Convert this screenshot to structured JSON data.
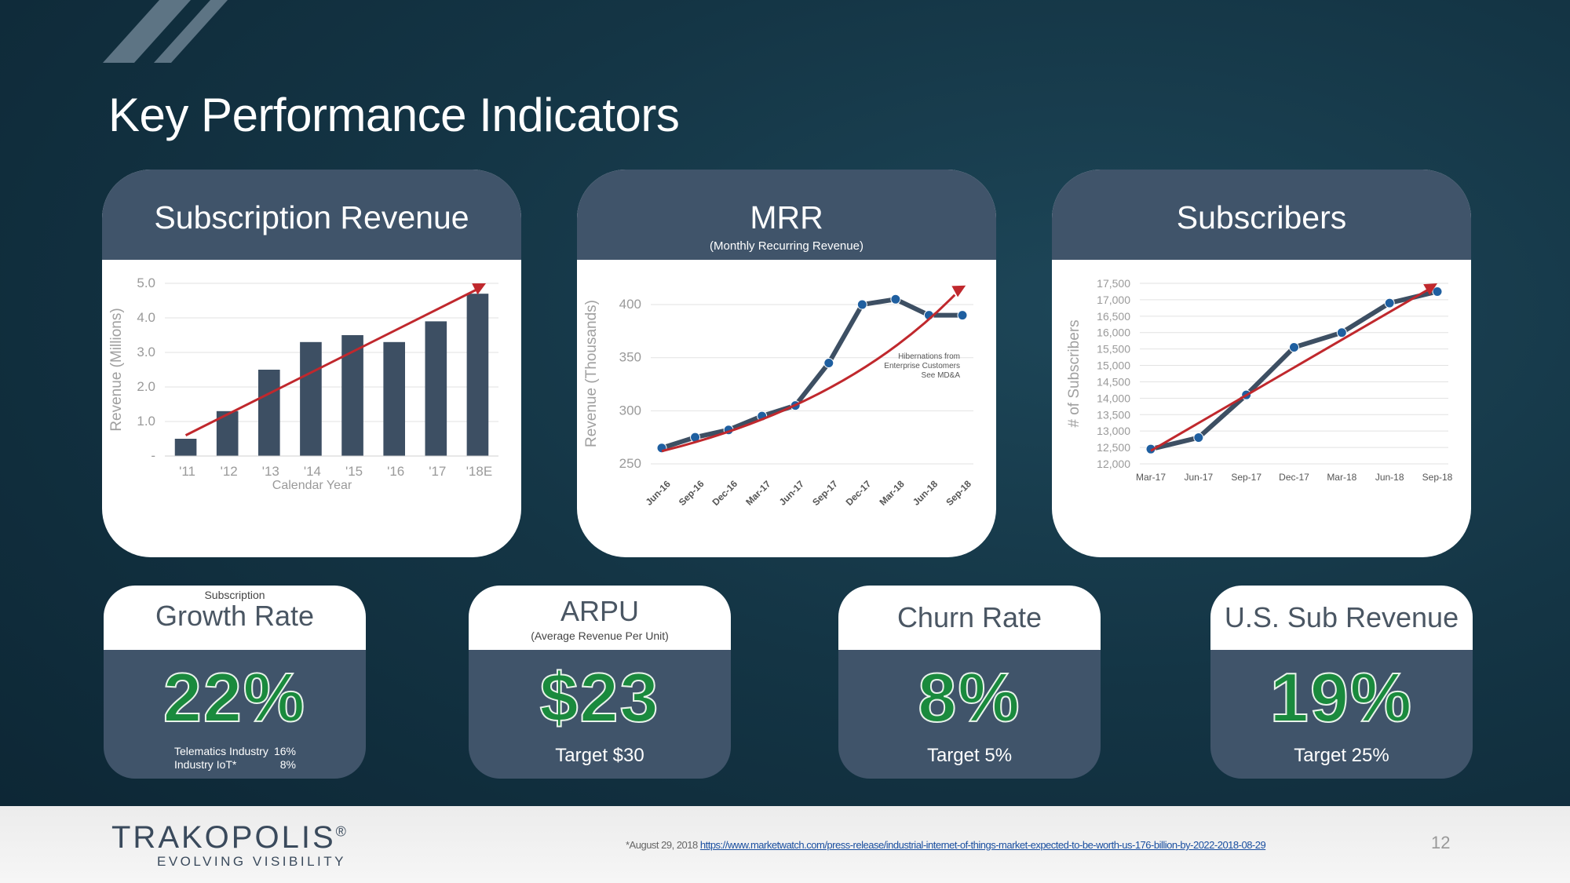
{
  "slide": {
    "title": "Key Performance Indicators",
    "page_number": "12"
  },
  "panels": {
    "subscription_revenue": {
      "title": "Subscription Revenue"
    },
    "mrr": {
      "title": "MRR",
      "subtitle": "(Monthly Recurring Revenue)"
    },
    "subscribers": {
      "title": "Subscribers"
    }
  },
  "chart_data": [
    {
      "type": "bar",
      "id": "subscription-revenue",
      "title": "Subscription Revenue",
      "xlabel": "Calendar Year",
      "ylabel": "Revenue (Millions)",
      "categories": [
        "'11",
        "'12",
        "'13",
        "'14",
        "'15",
        "'16",
        "'17",
        "'18E"
      ],
      "values": [
        0.5,
        1.3,
        2.5,
        3.3,
        3.5,
        3.3,
        3.9,
        4.7
      ],
      "ylim": [
        0,
        5.0
      ],
      "yticks": [
        0,
        1.0,
        2.0,
        3.0,
        4.0,
        5.0
      ],
      "ytick_labels": [
        "-",
        "1.0",
        "2.0",
        "3.0",
        "4.0",
        "5.0"
      ],
      "grid": true,
      "bar_color": "#3d4f63",
      "trend": {
        "color": "#c0282d",
        "start": [
          0,
          0.6
        ],
        "end": [
          7.2,
          5.0
        ]
      }
    },
    {
      "type": "line",
      "id": "mrr",
      "title": "MRR",
      "subtitle": "(Monthly Recurring Revenue)",
      "ylabel": "Revenue (Thousands)",
      "x": [
        "Jun-16",
        "Sep-16",
        "Dec-16",
        "Mar-17",
        "Jun-17",
        "Sep-17",
        "Dec-17",
        "Mar-18",
        "Jun-18",
        "Sep-18"
      ],
      "series": [
        {
          "values": [
            265,
            275,
            282,
            295,
            305,
            345,
            400,
            405,
            390,
            390
          ]
        }
      ],
      "ylim": [
        250,
        420
      ],
      "yticks": [
        250,
        300,
        350,
        400
      ],
      "ytick_labels": [
        "250",
        "300",
        "350",
        "400"
      ],
      "grid": true,
      "line_color": "#3d4f63",
      "annotation": [
        "Hibernations from",
        "Enterprise Customers",
        "See MD&A"
      ],
      "trend": {
        "color": "#c0282d",
        "start": [
          0,
          262
        ],
        "end": [
          9.1,
          418
        ]
      }
    },
    {
      "type": "line",
      "id": "subscribers",
      "title": "Subscribers",
      "ylabel": "# of Subscribers",
      "x": [
        "Mar-17",
        "Jun-17",
        "Sep-17",
        "Dec-17",
        "Mar-18",
        "Jun-18",
        "Sep-18"
      ],
      "series": [
        {
          "values": [
            12450,
            12800,
            14100,
            15550,
            16000,
            16900,
            17250
          ]
        }
      ],
      "ylim": [
        12000,
        17500
      ],
      "yticks": [
        12000,
        12500,
        13000,
        13500,
        14000,
        14500,
        15000,
        15500,
        16000,
        16500,
        17000,
        17500
      ],
      "ytick_labels": [
        "12,000",
        "12,500",
        "13,000",
        "13,500",
        "14,000",
        "14,500",
        "15,000",
        "15,500",
        "16,000",
        "16,500",
        "17,000",
        "17,500"
      ],
      "grid": true,
      "line_color": "#3d4f63",
      "trend": {
        "color": "#c0282d",
        "start": [
          0,
          12400
        ],
        "end": [
          6.0,
          17500
        ]
      }
    }
  ],
  "kpis": {
    "growth_rate": {
      "pre": "Subscription",
      "title": "Growth Rate",
      "value": "22%",
      "notes": [
        {
          "label": "Telematics Industry",
          "value": "16%"
        },
        {
          "label": "Industry IoT*",
          "value": "8%"
        }
      ]
    },
    "arpu": {
      "title": "ARPU",
      "subtitle": "(Average Revenue Per Unit)",
      "value": "$23",
      "target": "Target $30"
    },
    "churn_rate": {
      "title": "Churn Rate",
      "value": "8%",
      "target": "Target 5%"
    },
    "us_sub_revenue": {
      "title": "U.S. Sub Revenue",
      "value": "19%",
      "target": "Target 25%"
    }
  },
  "footer": {
    "logo": "TRAKOPOLIS",
    "logo_mark": "®",
    "tagline": "EVOLVING VISIBILITY",
    "footnote_prefix": "*August 29, 2018",
    "footnote_link": "https://www.marketwatch.com/press-release/industrial-internet-of-things-market-expected-to-be-worth-us-176-billion-by-2022-2018-08-29"
  },
  "colors": {
    "background": "#143545",
    "panel_header": "#40546a",
    "accent_green": "#1a8a3d",
    "trend_red": "#c0282d"
  }
}
